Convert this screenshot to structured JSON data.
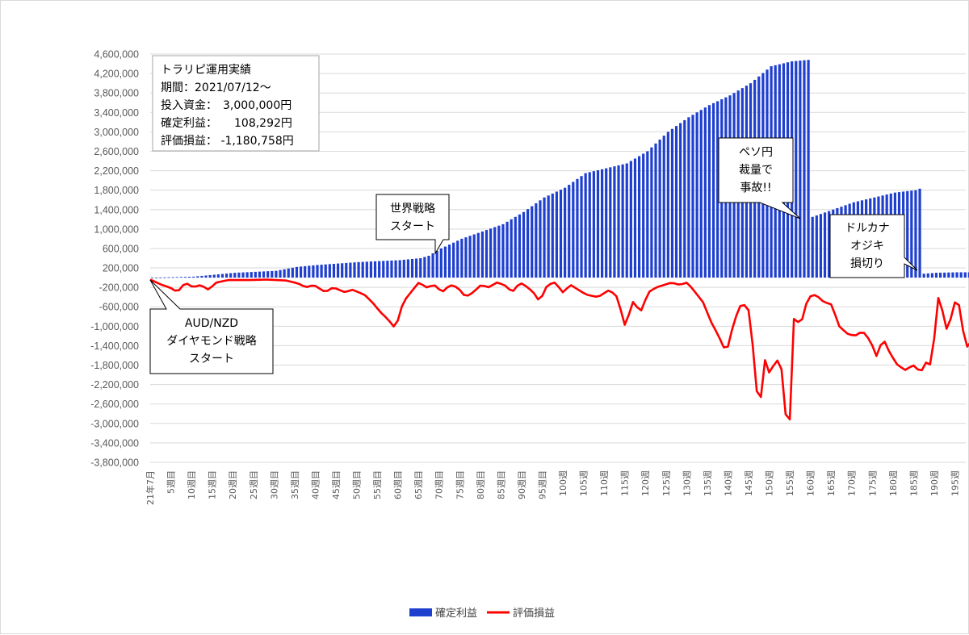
{
  "chart_data": {
    "type": "bar+line",
    "ylim": [
      -3800000,
      4600000
    ],
    "ytick_step": 400000,
    "yticks": [
      "4,600,000",
      "4,200,000",
      "3,800,000",
      "3,400,000",
      "3,000,000",
      "2,600,000",
      "2,200,000",
      "1,800,000",
      "1,400,000",
      "1,000,000",
      "600,000",
      "200,000",
      "-200,000",
      "-600,000",
      "-1,000,000",
      "-1,400,000",
      "-1,800,000",
      "-2,200,000",
      "-2,600,000",
      "-3,000,000",
      "-3,400,000",
      "-3,800,000"
    ],
    "xticks": [
      "21年7月",
      "5週目",
      "10週目",
      "15週目",
      "20週目",
      "25週目",
      "30週目",
      "35週目",
      "40週目",
      "45週目",
      "50週目",
      "55週目",
      "60週目",
      "65週目",
      "70週目",
      "75週目",
      "80週目",
      "85週目",
      "90週目",
      "95週目",
      "100週",
      "105週",
      "110週",
      "115週",
      "120週",
      "125週",
      "130週",
      "135週",
      "140週",
      "145週",
      "150週",
      "155週",
      "160週",
      "165週",
      "170週",
      "175週",
      "180週",
      "185週",
      "190週",
      "195週"
    ],
    "week_count": 200,
    "grid": true,
    "legend_position": "bottom",
    "series": [
      {
        "name": "確定利益",
        "type": "bar",
        "color": "#1f3fcf",
        "anchors": [
          [
            0,
            0
          ],
          [
            10,
            20000
          ],
          [
            20,
            100000
          ],
          [
            30,
            140000
          ],
          [
            35,
            220000
          ],
          [
            40,
            260000
          ],
          [
            50,
            320000
          ],
          [
            60,
            360000
          ],
          [
            65,
            400000
          ],
          [
            67,
            450000
          ],
          [
            70,
            600000
          ],
          [
            75,
            800000
          ],
          [
            80,
            950000
          ],
          [
            85,
            1100000
          ],
          [
            90,
            1350000
          ],
          [
            95,
            1650000
          ],
          [
            100,
            1850000
          ],
          [
            105,
            2150000
          ],
          [
            110,
            2250000
          ],
          [
            115,
            2350000
          ],
          [
            120,
            2600000
          ],
          [
            125,
            3000000
          ],
          [
            130,
            3300000
          ],
          [
            135,
            3550000
          ],
          [
            140,
            3750000
          ],
          [
            145,
            4000000
          ],
          [
            150,
            4350000
          ],
          [
            155,
            4450000
          ],
          [
            159,
            4480000
          ],
          [
            160,
            1250000
          ],
          [
            165,
            1400000
          ],
          [
            170,
            1550000
          ],
          [
            175,
            1650000
          ],
          [
            180,
            1750000
          ],
          [
            185,
            1800000
          ],
          [
            186,
            1830000
          ],
          [
            187,
            80000
          ],
          [
            190,
            100000
          ],
          [
            195,
            110000
          ],
          [
            199,
            110000
          ]
        ]
      },
      {
        "name": "評価損益",
        "type": "line",
        "color": "#ff0000",
        "anchors": [
          [
            0,
            -40000
          ],
          [
            3,
            -150000
          ],
          [
            5,
            -200000
          ],
          [
            7,
            -300000
          ],
          [
            9,
            -100000
          ],
          [
            11,
            -200000
          ],
          [
            13,
            -150000
          ],
          [
            15,
            -250000
          ],
          [
            17,
            -100000
          ],
          [
            20,
            -50000
          ],
          [
            25,
            -50000
          ],
          [
            30,
            -40000
          ],
          [
            35,
            -60000
          ],
          [
            38,
            -120000
          ],
          [
            40,
            -200000
          ],
          [
            42,
            -150000
          ],
          [
            45,
            -300000
          ],
          [
            47,
            -200000
          ],
          [
            50,
            -300000
          ],
          [
            52,
            -250000
          ],
          [
            55,
            -350000
          ],
          [
            57,
            -500000
          ],
          [
            59,
            -700000
          ],
          [
            61,
            -850000
          ],
          [
            63,
            -1050000
          ],
          [
            65,
            -500000
          ],
          [
            67,
            -300000
          ],
          [
            69,
            -100000
          ],
          [
            71,
            -200000
          ],
          [
            73,
            -150000
          ],
          [
            75,
            -300000
          ],
          [
            77,
            -150000
          ],
          [
            79,
            -200000
          ],
          [
            81,
            -400000
          ],
          [
            83,
            -300000
          ],
          [
            85,
            -150000
          ],
          [
            87,
            -200000
          ],
          [
            89,
            -100000
          ],
          [
            91,
            -150000
          ],
          [
            93,
            -300000
          ],
          [
            95,
            -100000
          ],
          [
            97,
            -200000
          ],
          [
            99,
            -350000
          ],
          [
            100,
            -500000
          ],
          [
            102,
            -150000
          ],
          [
            104,
            -100000
          ],
          [
            106,
            -300000
          ],
          [
            108,
            -150000
          ],
          [
            110,
            -250000
          ],
          [
            112,
            -350000
          ],
          [
            115,
            -400000
          ],
          [
            118,
            -250000
          ],
          [
            120,
            -400000
          ],
          [
            122,
            -1000000
          ],
          [
            124,
            -500000
          ],
          [
            126,
            -700000
          ],
          [
            128,
            -300000
          ],
          [
            130,
            -200000
          ],
          [
            132,
            -150000
          ],
          [
            134,
            -100000
          ],
          [
            136,
            -150000
          ],
          [
            138,
            -100000
          ],
          [
            140,
            -300000
          ],
          [
            142,
            -500000
          ],
          [
            144,
            -900000
          ],
          [
            146,
            -1200000
          ],
          [
            148,
            -1550000
          ],
          [
            150,
            -900000
          ],
          [
            152,
            -500000
          ],
          [
            154,
            -700000
          ],
          [
            156,
            -2500000
          ],
          [
            157,
            -2450000
          ],
          [
            158,
            -1650000
          ],
          [
            159,
            -1950000
          ],
          [
            161,
            -1700000
          ],
          [
            162,
            -1750000
          ],
          [
            163,
            -2500000
          ],
          [
            164,
            -3800000
          ],
          [
            165,
            -850000
          ],
          [
            166,
            -850000
          ],
          [
            167,
            -1000000
          ],
          [
            169,
            -400000
          ],
          [
            171,
            -350000
          ],
          [
            173,
            -500000
          ],
          [
            175,
            -550000
          ],
          [
            177,
            -1000000
          ],
          [
            179,
            -1150000
          ],
          [
            181,
            -1200000
          ],
          [
            183,
            -1100000
          ],
          [
            185,
            -1300000
          ],
          [
            187,
            -1700000
          ],
          [
            188,
            -1200000
          ],
          [
            190,
            -1550000
          ],
          [
            192,
            -1800000
          ],
          [
            194,
            -1900000
          ],
          [
            196,
            -1800000
          ],
          [
            198,
            -1950000
          ],
          [
            199,
            -1750000
          ],
          [
            200,
            -1750000
          ],
          [
            201,
            -1850000
          ],
          [
            202,
            -350000
          ],
          [
            203,
            -500000
          ],
          [
            205,
            -1200000
          ],
          [
            206,
            -650000
          ],
          [
            207,
            -450000
          ],
          [
            208,
            -600000
          ],
          [
            209,
            -1200000
          ],
          [
            210,
            -1450000
          ],
          [
            211,
            -1300000
          ],
          [
            212,
            -1150000
          ]
        ]
      }
    ]
  },
  "summary_box": {
    "lines": [
      "トラリピ運用実績",
      "期間：2021/07/12～",
      "投入資金：　3,000,000円",
      "確定利益：　　108,292円",
      "評価損益：  -1,180,758円"
    ]
  },
  "callouts": [
    {
      "id": "audnzd",
      "lines": [
        "AUD/NZD",
        "ダイヤモンド戦略",
        "スタート"
      ]
    },
    {
      "id": "world",
      "lines": [
        "世界戦略",
        "スタート"
      ]
    },
    {
      "id": "peso",
      "lines": [
        "ペソ円",
        "裁量で",
        "事故!!"
      ]
    },
    {
      "id": "dollar",
      "lines": [
        "ドルカナ",
        "オジキ",
        "損切り"
      ]
    }
  ]
}
